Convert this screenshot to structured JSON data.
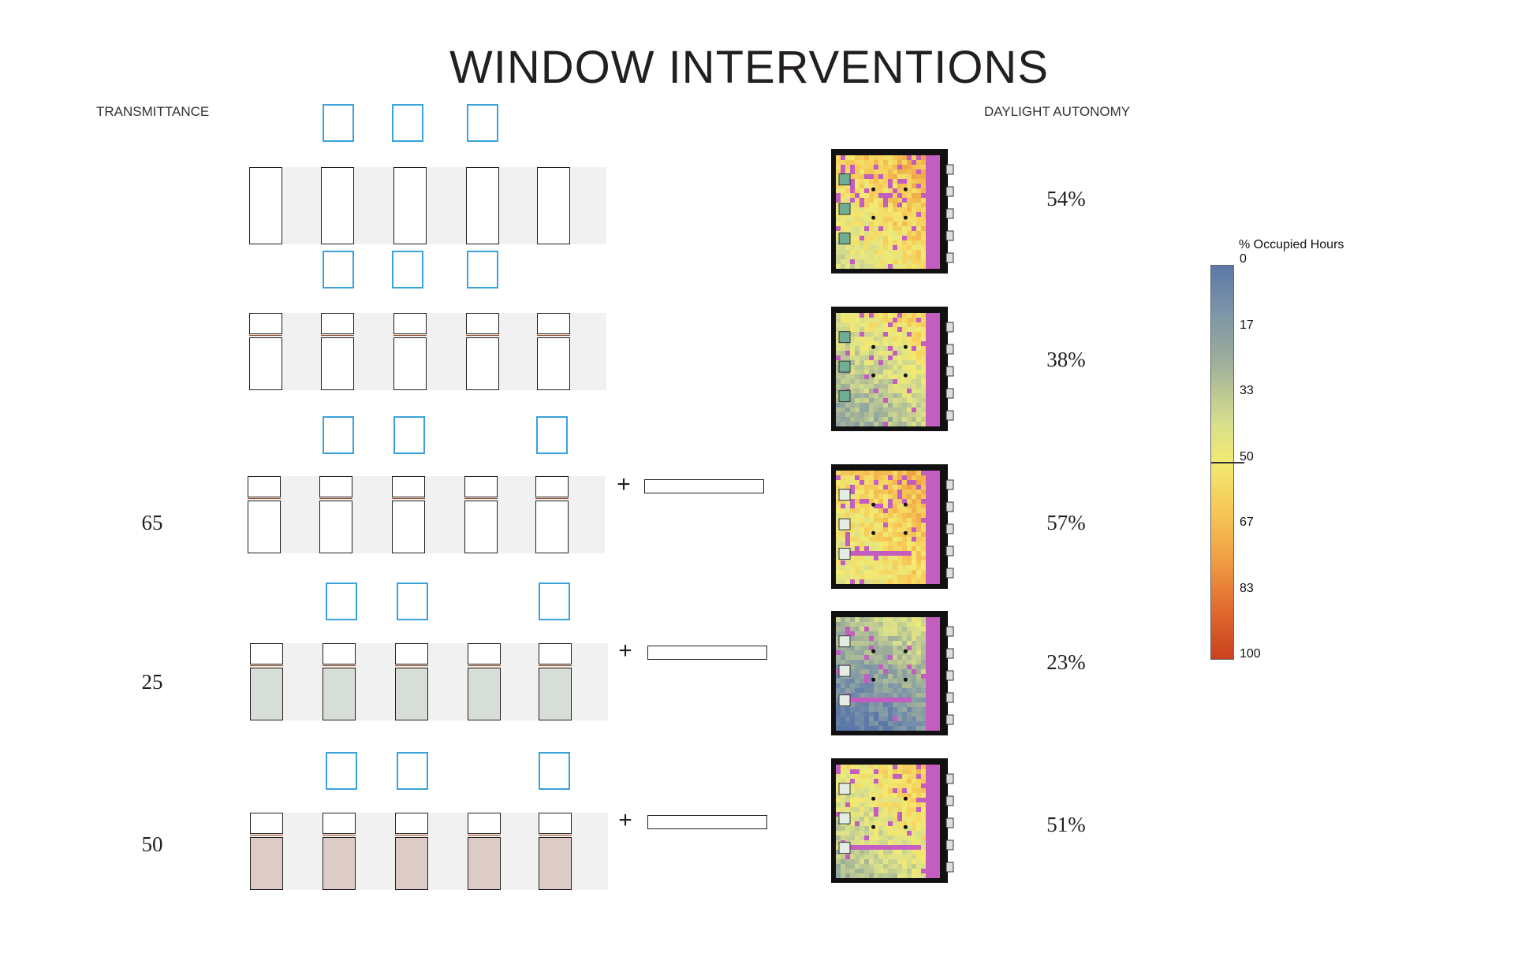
{
  "title": "WINDOW INTERVENTIONS",
  "labels": {
    "transmittance": "TRANSMITTANCE",
    "daylight_autonomy": "DAYLIGHT AUTONOMY"
  },
  "rows": [
    {
      "transmittance": "",
      "daylight_autonomy": "54%",
      "shelf": false
    },
    {
      "transmittance": "",
      "daylight_autonomy": "38%",
      "shelf": false
    },
    {
      "transmittance": "65",
      "daylight_autonomy": "57%",
      "shelf": true,
      "plus": "+"
    },
    {
      "transmittance": "25",
      "daylight_autonomy": "23%",
      "shelf": true,
      "plus": "+"
    },
    {
      "transmittance": "50",
      "daylight_autonomy": "51%",
      "shelf": true,
      "plus": "+"
    }
  ],
  "legend": {
    "title": "% Occupied Hours",
    "ticks": [
      "0",
      "17",
      "33",
      "50",
      "67",
      "83",
      "100"
    ]
  },
  "colors": {
    "sensor_outline": "#3aa3dc",
    "glass_tint_25": "#d7ddd7",
    "glass_tint_50": "#ddcbc5",
    "over_lit": "#c35ec0"
  }
}
